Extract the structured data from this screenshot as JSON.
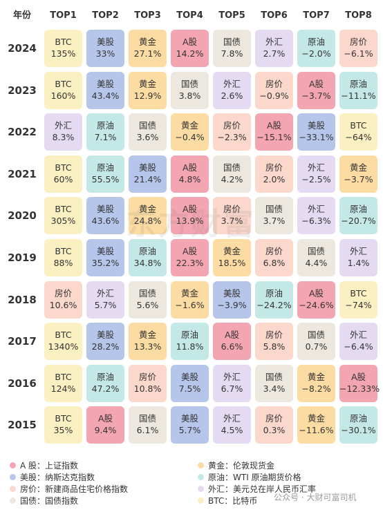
{
  "chart_data": {
    "type": "table",
    "corner_label": "年份",
    "columns": [
      "TOP1",
      "TOP2",
      "TOP3",
      "TOP4",
      "TOP5",
      "TOP6",
      "TOP7",
      "TOP8"
    ],
    "rows": [
      {
        "year": "2024",
        "cells": [
          [
            "BTC",
            "135%"
          ],
          [
            "美股",
            "33%"
          ],
          [
            "黄金",
            "27.1%"
          ],
          [
            "A股",
            "14.2%"
          ],
          [
            "国债",
            "7.8%"
          ],
          [
            "外汇",
            "2.7%"
          ],
          [
            "原油",
            "−2.0%"
          ],
          [
            "房价",
            "−6.1%"
          ]
        ]
      },
      {
        "year": "2023",
        "cells": [
          [
            "BTC",
            "160%"
          ],
          [
            "美股",
            "43.4%"
          ],
          [
            "黄金",
            "12.9%"
          ],
          [
            "国债",
            "3.8%"
          ],
          [
            "外汇",
            "2.6%"
          ],
          [
            "房价",
            "−0.9%"
          ],
          [
            "A股",
            "−3.7%"
          ],
          [
            "原油",
            "−11.1%"
          ]
        ]
      },
      {
        "year": "2022",
        "cells": [
          [
            "外汇",
            "8.3%"
          ],
          [
            "原油",
            "7.1%"
          ],
          [
            "国债",
            "3.6%"
          ],
          [
            "黄金",
            "−0.4%"
          ],
          [
            "房价",
            "−2.3%"
          ],
          [
            "A股",
            "−15.1%"
          ],
          [
            "美股",
            "−33.1%"
          ],
          [
            "BTC",
            "−64%"
          ]
        ]
      },
      {
        "year": "2021",
        "cells": [
          [
            "BTC",
            "60%"
          ],
          [
            "原油",
            "55.5%"
          ],
          [
            "美股",
            "21.4%"
          ],
          [
            "A股",
            "4.8%"
          ],
          [
            "国债",
            "4.2%"
          ],
          [
            "房价",
            "2.0%"
          ],
          [
            "外汇",
            "−2.5%"
          ],
          [
            "黄金",
            "−3.7%"
          ]
        ]
      },
      {
        "year": "2020",
        "cells": [
          [
            "BTC",
            "305%"
          ],
          [
            "美股",
            "43.6%"
          ],
          [
            "黄金",
            "24.8%"
          ],
          [
            "A股",
            "13.9%"
          ],
          [
            "房价",
            "3.7%"
          ],
          [
            "国债",
            "3.7%"
          ],
          [
            "外汇",
            "−6.3%"
          ],
          [
            "原油",
            "−20.7%"
          ]
        ]
      },
      {
        "year": "2019",
        "cells": [
          [
            "BTC",
            "88%"
          ],
          [
            "美股",
            "35.2%"
          ],
          [
            "原油",
            "34.8%"
          ],
          [
            "A股",
            "22.3%"
          ],
          [
            "黄金",
            "18.5%"
          ],
          [
            "房价",
            "6.8%"
          ],
          [
            "国债",
            "4.4%"
          ],
          [
            "外汇",
            "1.4%"
          ]
        ]
      },
      {
        "year": "2018",
        "cells": [
          [
            "房价",
            "10.6%"
          ],
          [
            "外汇",
            "5.7%"
          ],
          [
            "国债",
            "5.6%"
          ],
          [
            "黄金",
            "−1.6%"
          ],
          [
            "美股",
            "−3.9%"
          ],
          [
            "原油",
            "−24.2%"
          ],
          [
            "A股",
            "−24.6%"
          ],
          [
            "BTC",
            "−74%"
          ]
        ]
      },
      {
        "year": "2017",
        "cells": [
          [
            "BTC",
            "1340%"
          ],
          [
            "美股",
            "28.2%"
          ],
          [
            "黄金",
            "13.3%"
          ],
          [
            "原油",
            "11.8%"
          ],
          [
            "A股",
            "6.6%"
          ],
          [
            "房价",
            "5.8%"
          ],
          [
            "国债",
            "0.7%"
          ],
          [
            "外汇",
            "−6.4%"
          ]
        ]
      },
      {
        "year": "2016",
        "cells": [
          [
            "BTC",
            "124%"
          ],
          [
            "原油",
            "47.2%"
          ],
          [
            "房价",
            "10.8%"
          ],
          [
            "美股",
            "7.5%"
          ],
          [
            "外汇",
            "6.7%"
          ],
          [
            "国债",
            "3.4%"
          ],
          [
            "黄金",
            "−8.2%"
          ],
          [
            "A股",
            "−12.33%"
          ]
        ]
      },
      {
        "year": "2015",
        "cells": [
          [
            "BTC",
            "35%"
          ],
          [
            "A股",
            "9.4%"
          ],
          [
            "国债",
            "6.1%"
          ],
          [
            "美股",
            "5.7%"
          ],
          [
            "外汇",
            "4.5%"
          ],
          [
            "房价",
            "0.3%"
          ],
          [
            "黄金",
            "−11.6%"
          ],
          [
            "原油",
            "−30.1%"
          ]
        ]
      }
    ],
    "asset_colors": {
      "BTC": "#faf0c2",
      "美股": "#b6c6ea",
      "黄金": "#fcdca3",
      "A股": "#f4a5b2",
      "国债": "#ece7df",
      "外汇": "#e4dbf3",
      "原油": "#c4e8e6",
      "房价": "#fcd7cb"
    },
    "legend": [
      {
        "asset": "A股",
        "text": "A 股：上证指数"
      },
      {
        "asset": "黄金",
        "text": "黄金：伦敦现货金"
      },
      {
        "asset": "美股",
        "text": "美股：纳斯达克指数"
      },
      {
        "asset": "原油",
        "text": "原油：WTI 原油期货价格"
      },
      {
        "asset": "房价",
        "text": "房价：新建商品住宅价格指数"
      },
      {
        "asset": "外汇",
        "text": "外汇：美元兑在岸人民币汇率"
      },
      {
        "asset": "国债",
        "text": "国债：国债指数"
      },
      {
        "asset": "BTC",
        "text": "BTC：比特币"
      }
    ]
  },
  "watermark": "东方财富",
  "credit": "公众号 · 大财可富司机"
}
